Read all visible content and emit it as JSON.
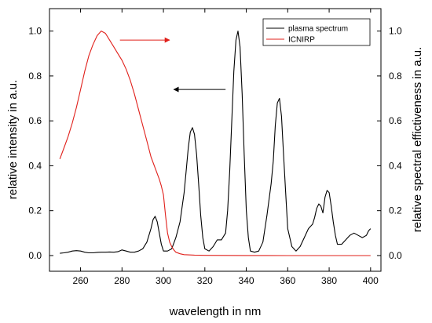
{
  "chart_data": {
    "type": "line",
    "xlabel": "wavelength in nm",
    "ylabel_left": "relative intensity in a.u.",
    "ylabel_right": "relative spectral effictiveness in a.u.",
    "xlim": [
      245,
      405
    ],
    "ylim": [
      -0.07,
      1.1
    ],
    "x_ticks": [
      260,
      280,
      300,
      320,
      340,
      360,
      380,
      400
    ],
    "y_ticks": [
      0.0,
      0.2,
      0.4,
      0.6,
      0.8,
      1.0
    ],
    "x_tick_labels": [
      "260",
      "280",
      "300",
      "320",
      "340",
      "360",
      "380",
      "400"
    ],
    "y_tick_labels": [
      "0.0",
      "0.2",
      "0.4",
      "0.6",
      "0.8",
      "1.0"
    ],
    "grid": false,
    "legend_position": "top-right",
    "series": [
      {
        "name": "plasma spectrum",
        "color": "#000000",
        "axis": "left",
        "x": [
          250,
          252,
          254,
          256,
          258,
          260,
          262,
          264,
          266,
          268,
          270,
          272,
          274,
          276,
          278,
          280,
          282,
          284,
          286,
          288,
          290,
          292,
          294,
          295,
          296,
          297,
          298,
          299,
          300,
          302,
          304,
          306,
          308,
          310,
          311,
          312,
          313,
          314,
          315,
          316,
          317,
          318,
          319,
          320,
          322,
          324,
          326,
          328,
          330,
          331,
          332,
          333,
          334,
          335,
          336,
          337,
          338,
          339,
          340,
          341,
          342,
          344,
          346,
          348,
          350,
          352,
          353,
          354,
          355,
          356,
          357,
          358,
          359,
          360,
          362,
          364,
          366,
          368,
          370,
          372,
          373,
          374,
          375,
          376,
          377,
          378,
          379,
          380,
          381,
          382,
          383,
          384,
          386,
          388,
          390,
          392,
          394,
          396,
          398,
          399,
          400
        ],
        "y": [
          0.01,
          0.012,
          0.015,
          0.02,
          0.022,
          0.02,
          0.015,
          0.012,
          0.012,
          0.014,
          0.015,
          0.015,
          0.016,
          0.015,
          0.017,
          0.025,
          0.02,
          0.015,
          0.015,
          0.02,
          0.03,
          0.06,
          0.12,
          0.16,
          0.175,
          0.15,
          0.1,
          0.05,
          0.02,
          0.02,
          0.03,
          0.08,
          0.15,
          0.28,
          0.38,
          0.48,
          0.55,
          0.57,
          0.54,
          0.45,
          0.32,
          0.18,
          0.08,
          0.03,
          0.02,
          0.04,
          0.07,
          0.07,
          0.1,
          0.2,
          0.38,
          0.6,
          0.82,
          0.96,
          1.0,
          0.93,
          0.72,
          0.45,
          0.2,
          0.08,
          0.02,
          0.015,
          0.02,
          0.06,
          0.18,
          0.32,
          0.42,
          0.58,
          0.68,
          0.7,
          0.62,
          0.45,
          0.28,
          0.12,
          0.04,
          0.02,
          0.04,
          0.08,
          0.12,
          0.14,
          0.17,
          0.21,
          0.23,
          0.22,
          0.19,
          0.26,
          0.29,
          0.28,
          0.22,
          0.15,
          0.09,
          0.05,
          0.05,
          0.07,
          0.09,
          0.1,
          0.09,
          0.08,
          0.09,
          0.11,
          0.12
        ]
      },
      {
        "name": "ICNIRP",
        "color": "#e0201b",
        "axis": "right",
        "x": [
          250,
          252,
          254,
          256,
          258,
          260,
          262,
          264,
          266,
          268,
          270,
          272,
          274,
          276,
          278,
          280,
          282,
          284,
          286,
          288,
          290,
          292,
          294,
          296,
          298,
          299,
          300,
          301,
          302,
          303,
          304,
          305,
          306,
          308,
          310,
          315,
          320,
          330,
          340,
          350,
          360,
          370,
          380,
          390,
          400
        ],
        "y": [
          0.43,
          0.48,
          0.53,
          0.59,
          0.66,
          0.74,
          0.82,
          0.89,
          0.94,
          0.98,
          1.0,
          0.99,
          0.96,
          0.93,
          0.9,
          0.87,
          0.83,
          0.78,
          0.72,
          0.65,
          0.58,
          0.51,
          0.44,
          0.39,
          0.34,
          0.31,
          0.27,
          0.18,
          0.1,
          0.06,
          0.04,
          0.025,
          0.015,
          0.008,
          0.004,
          0.002,
          0.001,
          0.0005,
          0.0002,
          0.0001,
          0.0,
          0.0,
          0.0,
          0.0,
          0.0
        ]
      }
    ],
    "annotations": [
      {
        "type": "arrow",
        "direction": "right",
        "color": "#e0201b",
        "from": [
          279,
          0.96
        ],
        "to": [
          303,
          0.96
        ]
      },
      {
        "type": "arrow",
        "direction": "left",
        "color": "#000000",
        "from": [
          330,
          0.74
        ],
        "to": [
          305,
          0.74
        ]
      }
    ]
  }
}
